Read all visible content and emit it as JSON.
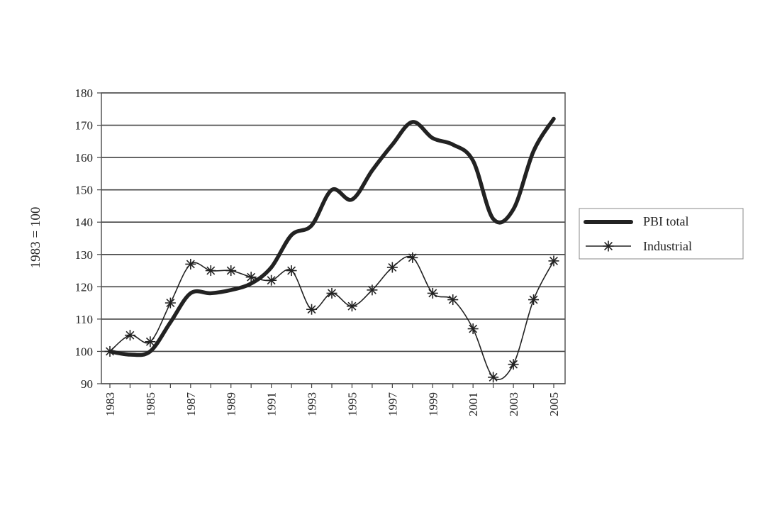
{
  "chart_data": {
    "type": "line",
    "title": "",
    "xlabel": "",
    "ylabel": "1983 = 100",
    "ylim": [
      90,
      180
    ],
    "yticks": [
      90,
      100,
      110,
      120,
      130,
      140,
      150,
      160,
      170,
      180
    ],
    "x": [
      1983,
      1984,
      1985,
      1986,
      1987,
      1988,
      1989,
      1990,
      1991,
      1992,
      1993,
      1994,
      1995,
      1996,
      1997,
      1998,
      1999,
      2000,
      2001,
      2002,
      2003,
      2004,
      2005
    ],
    "xtick_labels": [
      "1983",
      "1985",
      "1987",
      "1989",
      "1991",
      "1993",
      "1995",
      "1997",
      "1999",
      "2001",
      "2003",
      "2005"
    ],
    "grid": "horizontal",
    "legend_position": "right",
    "series": [
      {
        "name": "PBI total",
        "style": "thick-line",
        "color": "#222222",
        "values": [
          100,
          99,
          100,
          109,
          118,
          118,
          119,
          121,
          126,
          136,
          139,
          150,
          147,
          156,
          164,
          171,
          166,
          164,
          159,
          141,
          144,
          162,
          172
        ]
      },
      {
        "name": "Industrial",
        "style": "thin-line-star-markers",
        "color": "#222222",
        "values": [
          100,
          105,
          103,
          115,
          127,
          125,
          125,
          123,
          122,
          125,
          113,
          118,
          114,
          119,
          126,
          129,
          118,
          116,
          107,
          92,
          96,
          116,
          128
        ]
      }
    ]
  }
}
